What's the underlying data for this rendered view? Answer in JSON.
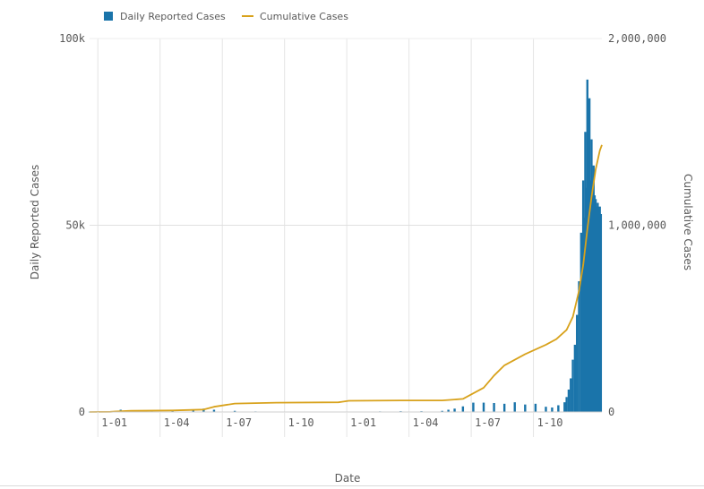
{
  "chart_data": {
    "type": "bar+line",
    "legend": {
      "placement": "top-left",
      "items": [
        {
          "label": "Daily Reported Cases",
          "color": "#1a74aa",
          "kind": "bar"
        },
        {
          "label": "Cumulative Cases",
          "color": "#d8a21c",
          "kind": "line"
        }
      ]
    },
    "xlabel": "Date",
    "ylabel_left": "Daily Reported Cases",
    "ylabel_right": "Cumulative Cases",
    "x_ticks": [
      "1-01",
      "1-04",
      "1-07",
      "1-10",
      "1-01",
      "1-04",
      "1-07",
      "1-10"
    ],
    "ylim_left": [
      0,
      100000
    ],
    "ylim_right": [
      0,
      2000000
    ],
    "y_ticks_left": [
      {
        "value": 0,
        "label": "0"
      },
      {
        "value": 50000,
        "label": "50k"
      },
      {
        "value": 100000,
        "label": "100k"
      }
    ],
    "y_ticks_right": [
      {
        "value": 0,
        "label": "0"
      },
      {
        "value": 1000000,
        "label": "1,000,000"
      },
      {
        "value": 2000000,
        "label": "2,000,000"
      }
    ],
    "x_range_months": [
      0,
      24.7
    ],
    "series": [
      {
        "name": "Daily Reported Cases",
        "type": "bar",
        "axis": "left",
        "x_months": [
          0,
          1,
          1.5,
          2,
          3,
          4,
          5,
          5.5,
          6,
          7,
          8,
          9,
          12,
          14,
          15,
          16,
          17,
          17.3,
          17.6,
          18,
          18.5,
          19,
          19.5,
          20,
          20.5,
          21,
          21.5,
          22,
          22.3,
          22.6,
          22.9,
          23,
          23.1,
          23.2,
          23.3,
          23.4,
          23.5,
          23.6,
          23.7,
          23.75,
          23.8,
          23.85,
          23.9,
          23.95,
          24,
          24.05,
          24.1,
          24.15,
          24.2,
          24.25,
          24.3,
          24.35,
          24.4,
          24.45,
          24.5,
          24.55,
          24.6,
          24.65
        ],
        "values": [
          50,
          200,
          600,
          300,
          200,
          300,
          500,
          900,
          600,
          300,
          150,
          100,
          100,
          150,
          200,
          200,
          300,
          600,
          900,
          1500,
          2500,
          2500,
          2400,
          2200,
          2600,
          2000,
          2200,
          1400,
          1200,
          1800,
          2600,
          4000,
          6000,
          9000,
          14000,
          18000,
          26000,
          35000,
          48000,
          30000,
          62000,
          52000,
          75000,
          60000,
          89000,
          70000,
          84000,
          62000,
          73000,
          59000,
          66000,
          58000,
          57000,
          55000,
          56000,
          54000,
          55000,
          53000
        ]
      },
      {
        "name": "Cumulative Cases",
        "type": "line",
        "axis": "right",
        "x_months": [
          0,
          1,
          1.3,
          2,
          4,
          5.5,
          6,
          7,
          9,
          12,
          12.5,
          15,
          17,
          18,
          19,
          19.5,
          20,
          21,
          22,
          22.5,
          23,
          23.3,
          23.6,
          23.8,
          24,
          24.2,
          24.4,
          24.6,
          24.7
        ],
        "values": [
          0,
          1000,
          3000,
          6000,
          8000,
          13000,
          28000,
          45000,
          50000,
          52000,
          60000,
          62000,
          62000,
          70000,
          130000,
          195000,
          250000,
          310000,
          360000,
          390000,
          440000,
          510000,
          650000,
          790000,
          980000,
          1150000,
          1300000,
          1400000,
          1430000
        ]
      }
    ],
    "grid": {
      "vertical": true,
      "horizontal_mid": true
    }
  }
}
